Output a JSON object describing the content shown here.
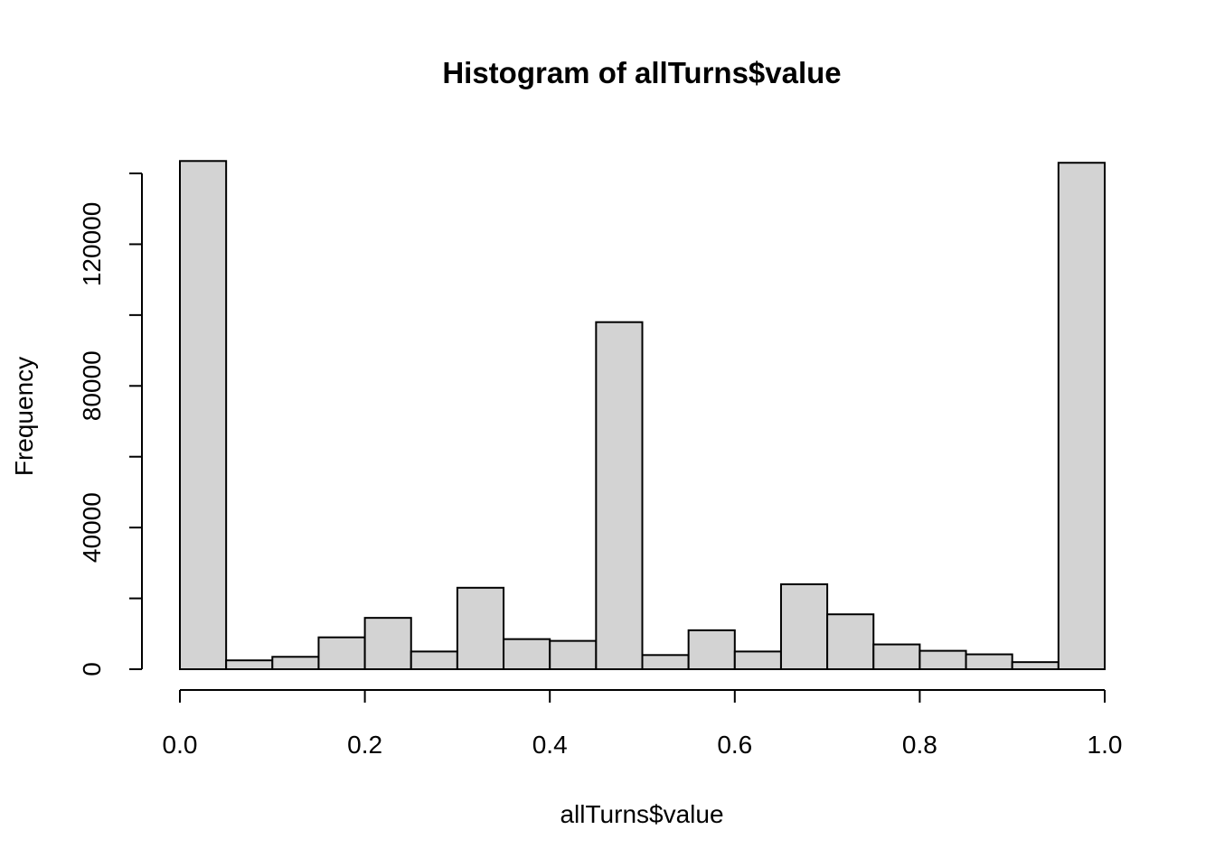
{
  "chart_data": {
    "type": "bar",
    "subtype": "histogram",
    "title": "Histogram of allTurns$value",
    "xlabel": "allTurns$value",
    "ylabel": "Frequency",
    "bar_color": "#d3d3d3",
    "border_color": "#000000",
    "bin_edges": [
      0.0,
      0.05,
      0.1,
      0.15,
      0.2,
      0.25,
      0.3,
      0.35,
      0.4,
      0.45,
      0.5,
      0.55,
      0.6,
      0.65,
      0.7,
      0.75,
      0.8,
      0.85,
      0.9,
      0.95,
      1.0
    ],
    "values": [
      143500,
      2500,
      3500,
      9000,
      14500,
      5000,
      23000,
      8500,
      8000,
      98000,
      4000,
      11000,
      5000,
      24000,
      15500,
      7000,
      5200,
      4200,
      2000,
      143000
    ],
    "xlim": [
      0.0,
      1.0
    ],
    "ylim": [
      0,
      140000
    ],
    "xticks": [
      0.0,
      0.2,
      0.4,
      0.6,
      0.8,
      1.0
    ],
    "xtick_labels": [
      "0.0",
      "0.2",
      "0.4",
      "0.6",
      "0.8",
      "1.0"
    ],
    "yticks": [
      0,
      20000,
      40000,
      60000,
      80000,
      100000,
      120000,
      140000
    ],
    "ytick_labels": [
      {
        "value": 0,
        "label": "0"
      },
      {
        "value": 40000,
        "label": "40000"
      },
      {
        "value": 80000,
        "label": "80000"
      },
      {
        "value": 120000,
        "label": "120000"
      }
    ],
    "grid": false,
    "legend": "none"
  }
}
